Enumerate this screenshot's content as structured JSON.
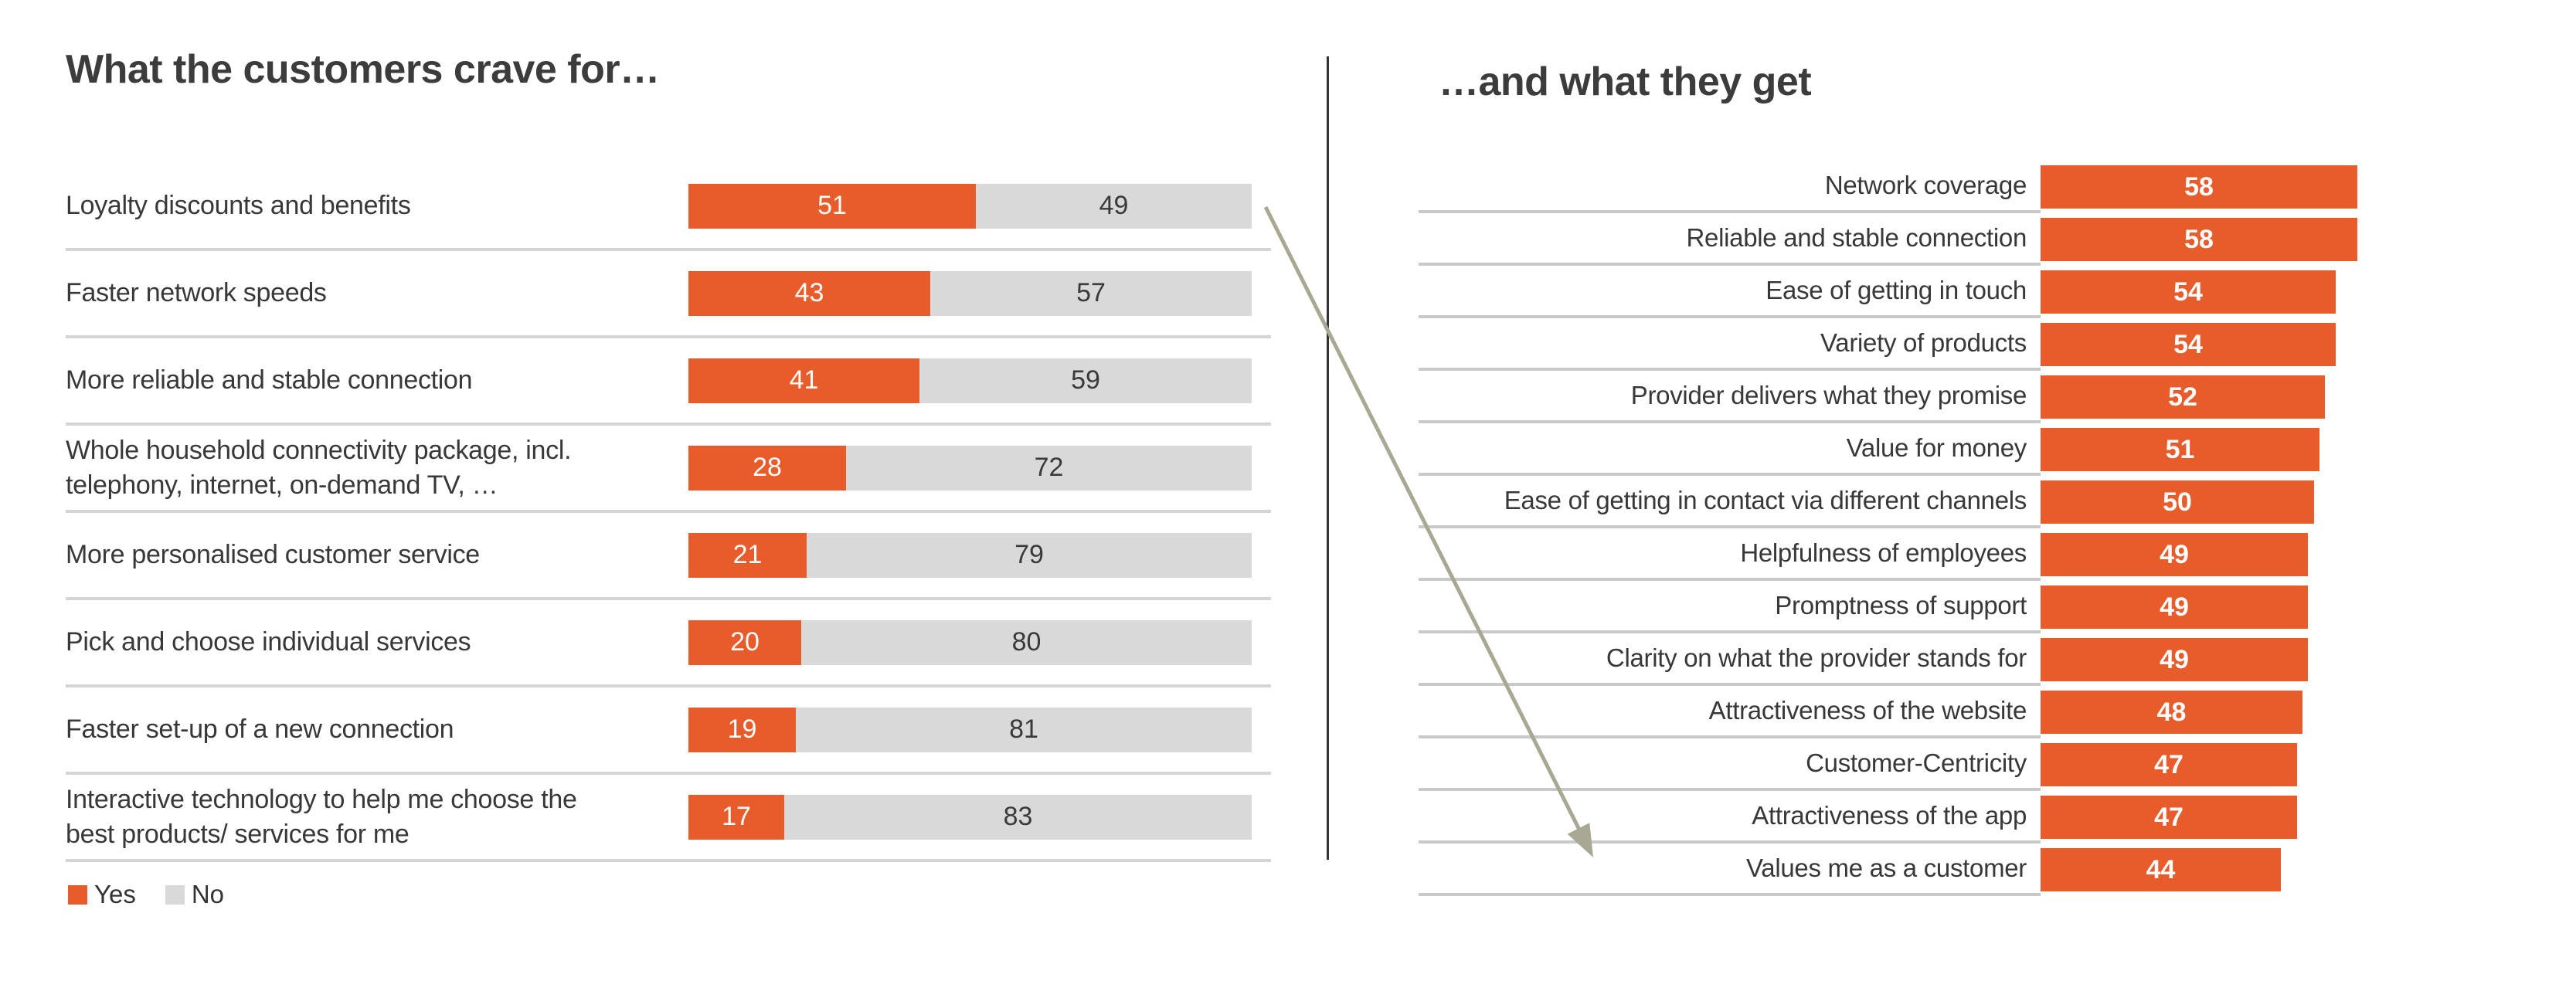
{
  "left_chart": {
    "title": "What the customers crave for…",
    "legend": [
      {
        "label": "Yes",
        "color": "#E85C2B"
      },
      {
        "label": "No",
        "color": "#D9D9D9"
      }
    ]
  },
  "right_chart": {
    "title": "…and what they get"
  },
  "colors": {
    "accent_orange": "#E85C2B",
    "bar_gray": "#D9D9D9",
    "text_dark": "#383838",
    "divider": "#333333",
    "arrow": "#A9A893"
  },
  "annotation_arrow": {
    "from_label": "Loyalty discounts and benefits",
    "to_label": "Values me as a customer"
  },
  "chart_data": [
    {
      "type": "bar",
      "orientation": "horizontal-stacked",
      "title": "What the customers crave for…",
      "categories": [
        "Loyalty discounts and benefits",
        "Faster network speeds",
        "More reliable and stable connection",
        "Whole household connectivity package, incl. telephony, internet, on-demand TV, …",
        "More personalised customer service",
        "Pick and choose individual services",
        "Faster set-up of a new connection",
        "Interactive technology to help me choose the best products/ services for me"
      ],
      "series": [
        {
          "name": "Yes",
          "color": "#E85C2B",
          "values": [
            51,
            43,
            41,
            28,
            21,
            20,
            19,
            17
          ]
        },
        {
          "name": "No",
          "color": "#D9D9D9",
          "values": [
            49,
            57,
            59,
            72,
            79,
            80,
            81,
            83
          ]
        }
      ],
      "xlim": [
        0,
        100
      ],
      "value_labels": "inside",
      "legend_position": "bottom-left",
      "grid": false
    },
    {
      "type": "bar",
      "orientation": "horizontal",
      "title": "…and what they get",
      "categories": [
        "Network coverage",
        "Reliable and stable connection",
        "Ease of getting in touch",
        "Variety of products",
        "Provider delivers what they promise",
        "Value for money",
        "Ease of getting in contact via different channels",
        "Helpfulness of employees",
        "Promptness of support",
        "Clarity on what the provider stands for",
        "Attractiveness of the website",
        "Customer-Centricity",
        "Attractiveness of the app",
        "Values me as a customer"
      ],
      "values": [
        58,
        58,
        54,
        54,
        52,
        51,
        50,
        49,
        49,
        49,
        48,
        47,
        47,
        44
      ],
      "bar_color": "#E85C2B",
      "value_labels": "inside-white-bold",
      "grid": false
    }
  ]
}
